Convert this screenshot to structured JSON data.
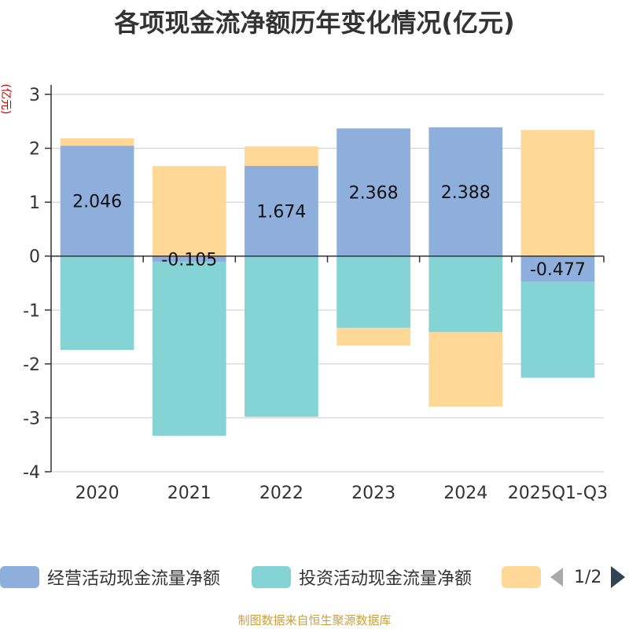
{
  "chart_data": {
    "type": "bar",
    "stacked": true,
    "title": "各项现金流净额历年变化情况(亿元)",
    "ylabel": "(亿元)",
    "xlabel": "",
    "ylim": [
      -4,
      3
    ],
    "yticks": [
      3,
      2,
      1,
      0,
      -1,
      -2,
      -3,
      -4
    ],
    "categories": [
      "2020",
      "2021",
      "2022",
      "2023",
      "2024",
      "2025Q1-Q3"
    ],
    "series": [
      {
        "name": "经营活动现金流量净额",
        "color": "#8eaedb",
        "values": [
          2.046,
          -0.105,
          1.674,
          2.368,
          2.388,
          -0.477
        ],
        "labels": [
          "2.046",
          "-0.105",
          "1.674",
          "2.368",
          "2.388",
          "-0.477"
        ]
      },
      {
        "name": "投资活动现金流量净额",
        "color": "#84d4d6",
        "values": [
          -1.74,
          -3.23,
          -2.98,
          -1.33,
          -1.41,
          -1.78
        ]
      },
      {
        "name": "",
        "color": "#ffd898",
        "values": [
          0.14,
          1.67,
          0.36,
          -0.33,
          -1.38,
          2.34
        ]
      }
    ]
  },
  "legend": {
    "item1": "经营活动现金流量净额",
    "item2": "投资活动现金流量净额",
    "page": "1/2"
  },
  "footer": "制图数据来自恒生聚源数据库"
}
